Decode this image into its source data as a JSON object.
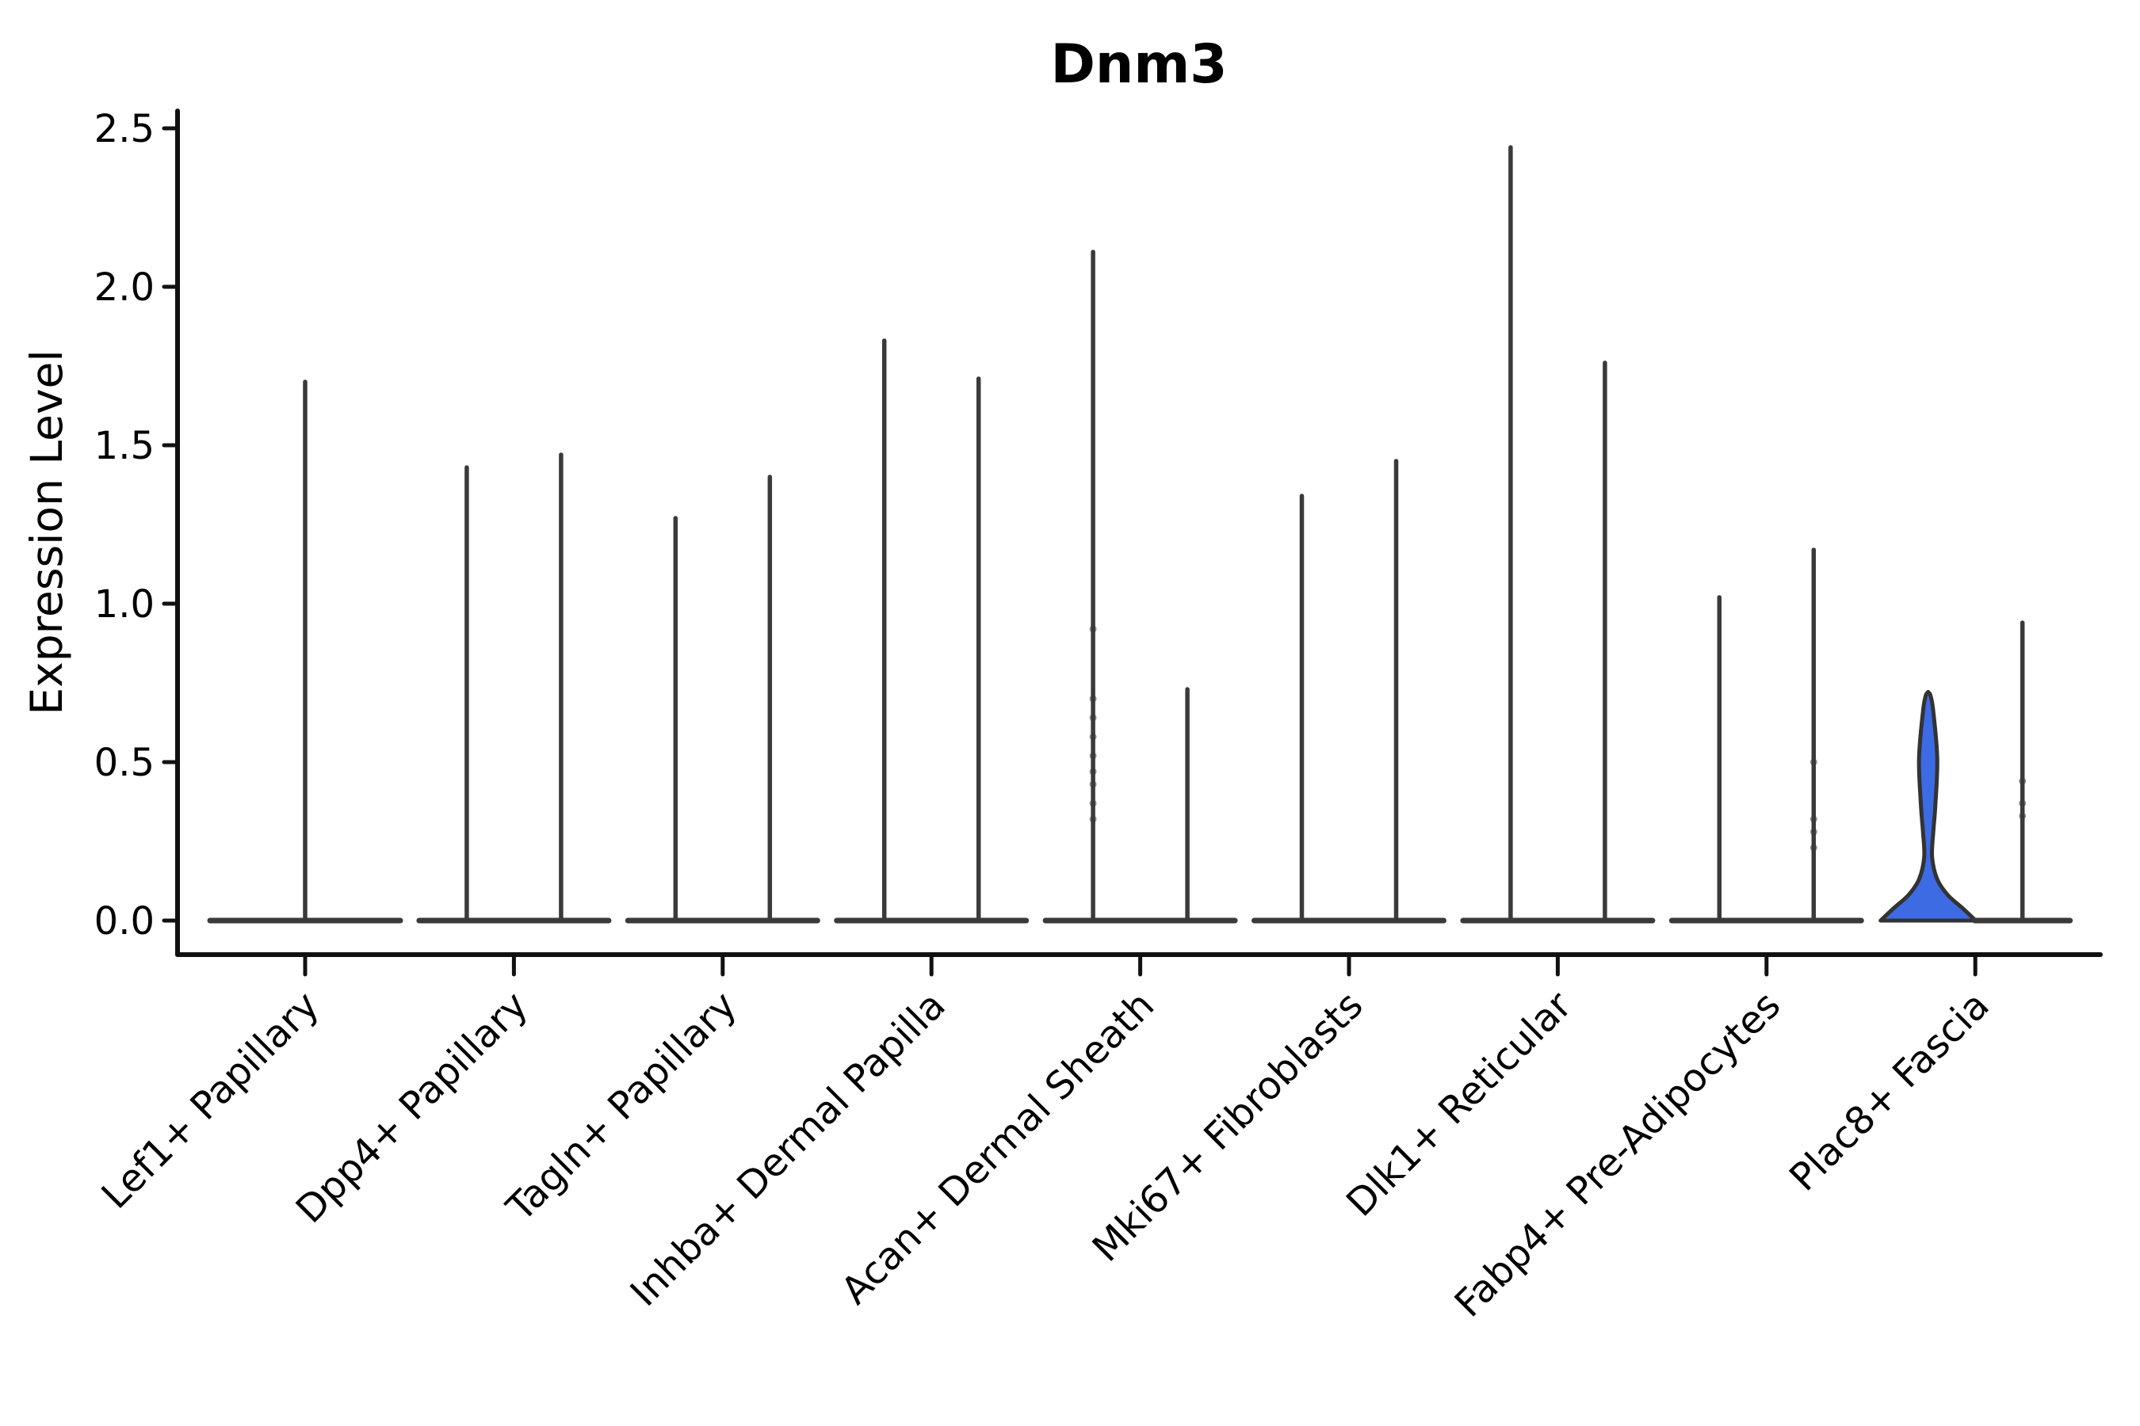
{
  "figure": {
    "background": "#ffffff"
  },
  "chart_data": {
    "type": "violin",
    "title": "Dnm3",
    "ylabel": "Expression Level",
    "xlabel": "",
    "ylim": [
      0,
      2.56
    ],
    "grid": false,
    "legend": "none",
    "yticks": {
      "values": [
        0,
        0.5,
        1.0,
        1.5,
        2.0,
        2.5
      ],
      "labels": [
        "0.0",
        "0.5",
        "1.0",
        "1.5",
        "2.0",
        "2.5"
      ]
    },
    "categories": [
      "Lef1+ Papillary",
      "Dpp4+ Papillary",
      "Tagln+ Papillary",
      "Inhba+ Dermal Papilla",
      "Acan+ Dermal Sheath",
      "Mki67+ Fibroblasts",
      "Dlk1+ Reticular",
      "Fabp4+ Pre-Adipocytes",
      "Plac8+ Fascia"
    ],
    "groups": [
      {
        "label": "Lef1+ Papillary",
        "violins": [
          {
            "style": "spike",
            "peak": 1.7
          }
        ]
      },
      {
        "label": "Dpp4+ Papillary",
        "violins": [
          {
            "style": "spike",
            "peak": 1.43
          },
          {
            "style": "spike",
            "peak": 1.47
          }
        ]
      },
      {
        "label": "Tagln+ Papillary",
        "violins": [
          {
            "style": "spike",
            "peak": 1.27
          },
          {
            "style": "spike",
            "peak": 1.4
          }
        ]
      },
      {
        "label": "Inhba+ Dermal Papilla",
        "violins": [
          {
            "style": "spike",
            "peak": 1.83
          },
          {
            "style": "spike",
            "peak": 1.71
          }
        ]
      },
      {
        "label": "Acan+ Dermal Sheath",
        "violins": [
          {
            "style": "spike",
            "peak": 2.11,
            "dots": [
              0.92,
              0.7,
              0.64,
              0.58,
              0.52,
              0.47,
              0.43,
              0.37,
              0.32
            ]
          },
          {
            "style": "spike",
            "peak": 0.73
          }
        ]
      },
      {
        "label": "Mki67+ Fibroblasts",
        "violins": [
          {
            "style": "spike",
            "peak": 1.34
          },
          {
            "style": "spike",
            "peak": 1.45
          }
        ]
      },
      {
        "label": "Dlk1+ Reticular",
        "violins": [
          {
            "style": "spike",
            "peak": 2.44
          },
          {
            "style": "spike",
            "peak": 1.76
          }
        ]
      },
      {
        "label": "Fabp4+ Pre-Adipocytes",
        "violins": [
          {
            "style": "spike",
            "peak": 1.02
          },
          {
            "style": "spike",
            "peak": 1.17,
            "dots": [
              0.5,
              0.32,
              0.28,
              0.23
            ]
          }
        ]
      },
      {
        "label": "Plac8+ Fascia",
        "violins": [
          {
            "style": "filled",
            "peak": 0.72,
            "profile": [
              [
                0,
                60
              ],
              [
                0.04,
                43
              ],
              [
                0.08,
                25
              ],
              [
                0.13,
                11.5
              ],
              [
                0.2,
                5
              ],
              [
                0.28,
                6.5
              ],
              [
                0.36,
                9
              ],
              [
                0.51,
                11.5
              ],
              [
                0.66,
                6.5
              ],
              [
                0.71,
                3
              ],
              [
                0.72,
                0
              ]
            ]
          },
          {
            "style": "spike",
            "peak": 0.94,
            "dots": [
              0.44,
              0.37,
              0.33
            ]
          }
        ]
      }
    ],
    "colors": {
      "violin_fill": "#3D6BE3",
      "violin_stroke": "#333333",
      "spike": "#3a3a3a",
      "axis": "#111111",
      "text": "#000000",
      "dot": "#3a3a3a"
    }
  }
}
